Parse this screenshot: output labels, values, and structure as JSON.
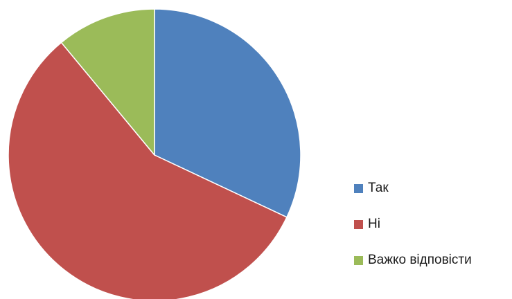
{
  "chart_data": {
    "type": "pie",
    "categories": [
      "Так",
      "Ні",
      "Важко відповісти"
    ],
    "values": [
      32,
      57,
      11
    ],
    "colors": [
      "#4f81bd",
      "#c0504d",
      "#9bbb59"
    ],
    "start_angle_deg": 0,
    "direction": "clockwise",
    "legend_position": "right",
    "title": ""
  }
}
